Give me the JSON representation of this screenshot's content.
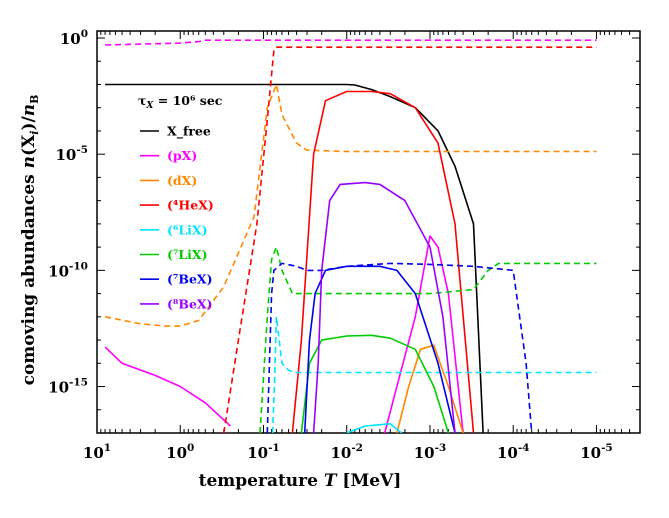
{
  "chart_data": {
    "type": "line",
    "title": "",
    "xlabel": "temperature T [MeV]",
    "ylabel": "comoving abundances n(X_i)/n_B",
    "x_scale": "log",
    "x_reversed": true,
    "y_scale": "log",
    "xlim": [
      10,
      3e-06
    ],
    "ylim": [
      1e-17,
      2
    ],
    "x_tick_values": [
      10,
      1,
      0.1,
      0.01,
      0.001,
      0.0001,
      1e-05
    ],
    "x_tick_labels": [
      {
        "base": "10",
        "exp": "1"
      },
      {
        "base": "10",
        "exp": "0"
      },
      {
        "base": "10",
        "exp": "-1"
      },
      {
        "base": "10",
        "exp": "-2"
      },
      {
        "base": "10",
        "exp": "-3"
      },
      {
        "base": "10",
        "exp": "-4"
      },
      {
        "base": "10",
        "exp": "-5"
      }
    ],
    "y_tick_values": [
      1,
      1e-05,
      1e-10,
      1e-15
    ],
    "y_tick_labels": [
      {
        "base": "10",
        "exp": "0"
      },
      {
        "base": "10",
        "exp": "-5"
      },
      {
        "base": "10",
        "exp": "-10"
      },
      {
        "base": "10",
        "exp": "-15"
      }
    ],
    "annotation": "τX = 10⁶ sec",
    "legend": {
      "placement": "top-left",
      "entries": [
        {
          "label": "X_free",
          "color": "#000000"
        },
        {
          "label": "(pX)",
          "color": "#ff00ff"
        },
        {
          "label": "(dX)",
          "color": "#ff8800"
        },
        {
          "label": "(⁴HeX)",
          "color": "#ff0000"
        },
        {
          "label": "(⁶LiX)",
          "color": "#00e5ff"
        },
        {
          "label": "(⁷LiX)",
          "color": "#00cc00"
        },
        {
          "label": "(⁷BeX)",
          "color": "#0000ee"
        },
        {
          "label": "(⁸BeX)",
          "color": "#9900ff"
        }
      ]
    },
    "line_styles": {
      "solid": "bound state",
      "dashed": "nucleus"
    },
    "series": [
      {
        "color": "#000000",
        "style": "solid",
        "points": [
          [
            8,
            0.01
          ],
          [
            1,
            0.01
          ],
          [
            0.1,
            0.01
          ],
          [
            0.01,
            0.01
          ],
          [
            0.008,
            0.0095
          ],
          [
            0.005,
            0.006
          ],
          [
            0.003,
            0.003
          ],
          [
            0.0015,
            0.001
          ],
          [
            0.0008,
            0.0001
          ],
          [
            0.0005,
            3e-06
          ],
          [
            0.0003,
            1e-08
          ],
          [
            0.00023,
            1e-17
          ]
        ]
      },
      {
        "color": "#ff00ff",
        "style": "dashed",
        "points": [
          [
            8,
            0.5
          ],
          [
            1,
            0.6
          ],
          [
            0.6,
            0.7
          ],
          [
            0.5,
            0.8
          ],
          [
            0.1,
            0.8
          ],
          [
            0.01,
            0.8
          ],
          [
            0.001,
            0.8
          ],
          [
            0.0001,
            0.8
          ],
          [
            1e-05,
            0.8
          ]
        ]
      },
      {
        "color": "#ff00ff",
        "style": "solid",
        "points": [
          [
            8,
            5e-14
          ],
          [
            5,
            1e-14
          ],
          [
            2,
            3e-15
          ],
          [
            1,
            1e-15
          ],
          [
            0.5,
            2e-16
          ],
          [
            0.25,
            2e-17
          ]
        ]
      },
      {
        "color": "#ff00ff",
        "style": "solid",
        "points": [
          [
            0.0035,
            1e-17
          ],
          [
            0.0025,
            1e-15
          ],
          [
            0.0015,
            1e-12
          ],
          [
            0.001,
            3e-09
          ],
          [
            0.0008,
            1e-09
          ],
          [
            0.0006,
            1e-11
          ],
          [
            0.0004,
            1e-17
          ]
        ]
      },
      {
        "color": "#ff8800",
        "style": "dashed",
        "points": [
          [
            8,
            1e-12
          ],
          [
            3,
            5e-13
          ],
          [
            1.5,
            4e-13
          ],
          [
            1,
            4e-13
          ],
          [
            0.6,
            7e-13
          ],
          [
            0.3,
            2e-11
          ],
          [
            0.13,
            2e-08
          ],
          [
            0.09,
            0.001
          ],
          [
            0.07,
            0.01
          ],
          [
            0.06,
            0.0005
          ],
          [
            0.04,
            3e-05
          ],
          [
            0.03,
            1.5e-05
          ],
          [
            0.01,
            1.3e-05
          ],
          [
            0.001,
            1.3e-05
          ],
          [
            0.0001,
            1.3e-05
          ],
          [
            1e-05,
            1.3e-05
          ]
        ]
      },
      {
        "color": "#ff8800",
        "style": "solid",
        "points": [
          [
            0.0025,
            1e-17
          ],
          [
            0.0018,
            1e-15
          ],
          [
            0.0013,
            4e-14
          ],
          [
            0.0009,
            6e-14
          ],
          [
            0.0006,
            1e-15
          ],
          [
            0.0004,
            1e-17
          ]
        ]
      },
      {
        "color": "#ff0000",
        "style": "dashed",
        "points": [
          [
            0.3,
            1e-17
          ],
          [
            0.2,
            1e-13
          ],
          [
            0.12,
            1e-08
          ],
          [
            0.09,
            0.0003
          ],
          [
            0.075,
            0.3
          ],
          [
            0.07,
            0.4
          ],
          [
            0.01,
            0.4
          ],
          [
            0.001,
            0.4
          ],
          [
            0.0001,
            0.4
          ],
          [
            1e-05,
            0.4
          ]
        ]
      },
      {
        "color": "#ff0000",
        "style": "solid",
        "points": [
          [
            0.045,
            1e-17
          ],
          [
            0.035,
            1e-13
          ],
          [
            0.025,
            1e-05
          ],
          [
            0.018,
            0.002
          ],
          [
            0.01,
            0.005
          ],
          [
            0.005,
            0.005
          ],
          [
            0.003,
            0.004
          ],
          [
            0.0015,
            0.001
          ],
          [
            0.0008,
            3e-05
          ],
          [
            0.0005,
            1e-08
          ],
          [
            0.0003,
            1e-17
          ]
        ]
      },
      {
        "color": "#00e5ff",
        "style": "dashed",
        "points": [
          [
            0.078,
            1e-17
          ],
          [
            0.074,
            1e-15
          ],
          [
            0.07,
            1e-12
          ],
          [
            0.06,
            1e-14
          ],
          [
            0.05,
            5e-15
          ],
          [
            0.04,
            4e-15
          ],
          [
            0.001,
            4e-15
          ],
          [
            0.0001,
            4e-15
          ],
          [
            1e-05,
            4e-15
          ]
        ]
      },
      {
        "color": "#00e5ff",
        "style": "solid",
        "points": [
          [
            0.01,
            1e-17
          ],
          [
            0.006,
            2e-17
          ],
          [
            0.003,
            2.5e-17
          ],
          [
            0.0022,
            1e-17
          ]
        ]
      },
      {
        "color": "#00cc00",
        "style": "dashed",
        "points": [
          [
            0.11,
            1e-17
          ],
          [
            0.09,
            1e-12
          ],
          [
            0.08,
            3e-10
          ],
          [
            0.07,
            1e-09
          ],
          [
            0.06,
            1e-10
          ],
          [
            0.045,
            1e-11
          ],
          [
            0.03,
            1e-11
          ],
          [
            0.01,
            1e-11
          ],
          [
            0.001,
            1e-11
          ],
          [
            0.0003,
            1.5e-11
          ],
          [
            0.0002,
            1e-10
          ],
          [
            0.00015,
            2e-10
          ],
          [
            0.0001,
            2e-10
          ],
          [
            1e-05,
            2e-10
          ]
        ]
      },
      {
        "color": "#00cc00",
        "style": "solid",
        "points": [
          [
            0.035,
            1e-17
          ],
          [
            0.028,
            1e-14
          ],
          [
            0.02,
            1e-13
          ],
          [
            0.01,
            1.5e-13
          ],
          [
            0.005,
            1.6e-13
          ],
          [
            0.003,
            1.2e-13
          ],
          [
            0.0015,
            4e-14
          ],
          [
            0.0009,
            1e-15
          ],
          [
            0.0006,
            1e-17
          ]
        ]
      },
      {
        "color": "#0000ee",
        "style": "dashed",
        "points": [
          [
            0.09,
            1e-17
          ],
          [
            0.08,
            1e-11
          ],
          [
            0.075,
            1e-10
          ],
          [
            0.06,
            2e-10
          ],
          [
            0.04,
            1.5e-10
          ],
          [
            0.03,
            1e-10
          ],
          [
            0.02,
            1e-10
          ],
          [
            0.01,
            1.5e-10
          ],
          [
            0.003,
            2e-10
          ],
          [
            0.001,
            1.8e-10
          ],
          [
            0.0003,
            1.5e-10
          ],
          [
            0.0001,
            1e-10
          ],
          [
            7e-05,
            1e-14
          ],
          [
            6e-05,
            1e-17
          ]
        ]
      },
      {
        "color": "#0000ee",
        "style": "solid",
        "points": [
          [
            0.032,
            1e-17
          ],
          [
            0.028,
            1e-13
          ],
          [
            0.024,
            1e-11
          ],
          [
            0.018,
            1e-10
          ],
          [
            0.01,
            1.5e-10
          ],
          [
            0.004,
            1.5e-10
          ],
          [
            0.0025,
            1e-10
          ],
          [
            0.0015,
            1e-11
          ],
          [
            0.0008,
            1e-14
          ],
          [
            0.0005,
            1e-17
          ]
        ]
      },
      {
        "color": "#9900ff",
        "style": "solid",
        "points": [
          [
            0.025,
            1e-17
          ],
          [
            0.022,
            1e-14
          ],
          [
            0.02,
            1e-10
          ],
          [
            0.016,
            1e-07
          ],
          [
            0.012,
            5e-07
          ],
          [
            0.006,
            6e-07
          ],
          [
            0.004,
            5e-07
          ],
          [
            0.002,
            1e-07
          ],
          [
            0.001,
            1e-09
          ],
          [
            0.0007,
            1e-12
          ],
          [
            0.0005,
            1e-17
          ]
        ]
      }
    ]
  }
}
